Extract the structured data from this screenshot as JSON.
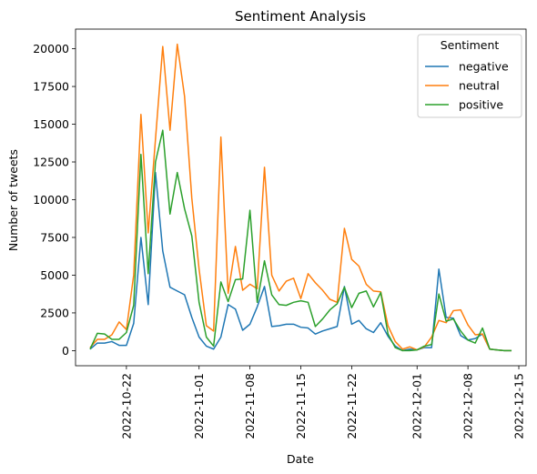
{
  "chart_data": {
    "type": "line",
    "title": "Sentiment Analysis",
    "xlabel": "Date",
    "ylabel": "Number of tweets",
    "x_type": "date",
    "xlim": [
      "2022-10-15",
      "2022-12-16"
    ],
    "ylim": [
      -1000,
      21300
    ],
    "x_ticks": [
      "2022-10-22",
      "2022-11-01",
      "2022-11-08",
      "2022-11-15",
      "2022-11-22",
      "2022-12-01",
      "2022-12-08",
      "2022-12-15"
    ],
    "y_ticks": [
      0,
      2500,
      5000,
      7500,
      10000,
      12500,
      15000,
      17500,
      20000
    ],
    "grid": false,
    "legend": {
      "title": "Sentiment",
      "placement": "top-right"
    },
    "dates": [
      "2022-10-17",
      "2022-10-18",
      "2022-10-19",
      "2022-10-20",
      "2022-10-21",
      "2022-10-22",
      "2022-10-23",
      "2022-10-24",
      "2022-10-25",
      "2022-10-26",
      "2022-10-27",
      "2022-10-28",
      "2022-10-29",
      "2022-10-30",
      "2022-10-31",
      "2022-11-01",
      "2022-11-02",
      "2022-11-03",
      "2022-11-04",
      "2022-11-05",
      "2022-11-06",
      "2022-11-07",
      "2022-11-08",
      "2022-11-09",
      "2022-11-10",
      "2022-11-11",
      "2022-11-12",
      "2022-11-13",
      "2022-11-14",
      "2022-11-15",
      "2022-11-16",
      "2022-11-17",
      "2022-11-18",
      "2022-11-19",
      "2022-11-20",
      "2022-11-21",
      "2022-11-22",
      "2022-11-23",
      "2022-11-24",
      "2022-11-25",
      "2022-11-26",
      "2022-11-27",
      "2022-11-28",
      "2022-11-29",
      "2022-11-30",
      "2022-12-01",
      "2022-12-02",
      "2022-12-03",
      "2022-12-04",
      "2022-12-05",
      "2022-12-06",
      "2022-12-07",
      "2022-12-08",
      "2022-12-09",
      "2022-12-10",
      "2022-12-11",
      "2022-12-12",
      "2022-12-13",
      "2022-12-14"
    ],
    "series": [
      {
        "name": "negative",
        "color": "#1f77b4",
        "values": [
          100,
          500,
          500,
          600,
          350,
          350,
          1800,
          7500,
          3050,
          11800,
          6600,
          4200,
          3950,
          3700,
          2200,
          900,
          300,
          100,
          900,
          3050,
          2750,
          1350,
          1750,
          2900,
          4250,
          1600,
          1650,
          1750,
          1750,
          1550,
          1500,
          1100,
          1300,
          1450,
          1600,
          4250,
          1750,
          2000,
          1450,
          1200,
          1850,
          950,
          300,
          0,
          100,
          50,
          200,
          200,
          5400,
          2200,
          2150,
          1000,
          700,
          800,
          1100,
          100,
          50,
          0,
          0
        ]
      },
      {
        "name": "neutral",
        "color": "#ff7f0e",
        "values": [
          200,
          750,
          750,
          1050,
          1900,
          1400,
          5000,
          15650,
          7800,
          14000,
          20150,
          14600,
          20300,
          16850,
          10100,
          5400,
          1650,
          1300,
          14150,
          3800,
          6900,
          4000,
          4400,
          4100,
          12150,
          5000,
          3950,
          4600,
          4800,
          3450,
          5100,
          4500,
          4000,
          3400,
          3200,
          8100,
          6050,
          5600,
          4400,
          3950,
          3900,
          1650,
          600,
          100,
          250,
          50,
          250,
          900,
          2000,
          1850,
          2650,
          2700,
          1700,
          1050,
          1100,
          100,
          50,
          0,
          0
        ]
      },
      {
        "name": "positive",
        "color": "#2ca02c",
        "values": [
          100,
          1150,
          1100,
          750,
          750,
          1200,
          3000,
          13000,
          5100,
          12500,
          14600,
          9050,
          11800,
          9400,
          7600,
          3200,
          900,
          300,
          4550,
          3250,
          4700,
          4750,
          9300,
          3200,
          5950,
          3700,
          3050,
          3000,
          3200,
          3300,
          3200,
          1600,
          2100,
          2700,
          3100,
          4200,
          2850,
          3800,
          3950,
          2900,
          3850,
          1100,
          200,
          0,
          0,
          50,
          300,
          400,
          3750,
          1950,
          2100,
          1300,
          700,
          500,
          1500,
          100,
          50,
          0,
          0
        ]
      }
    ]
  }
}
